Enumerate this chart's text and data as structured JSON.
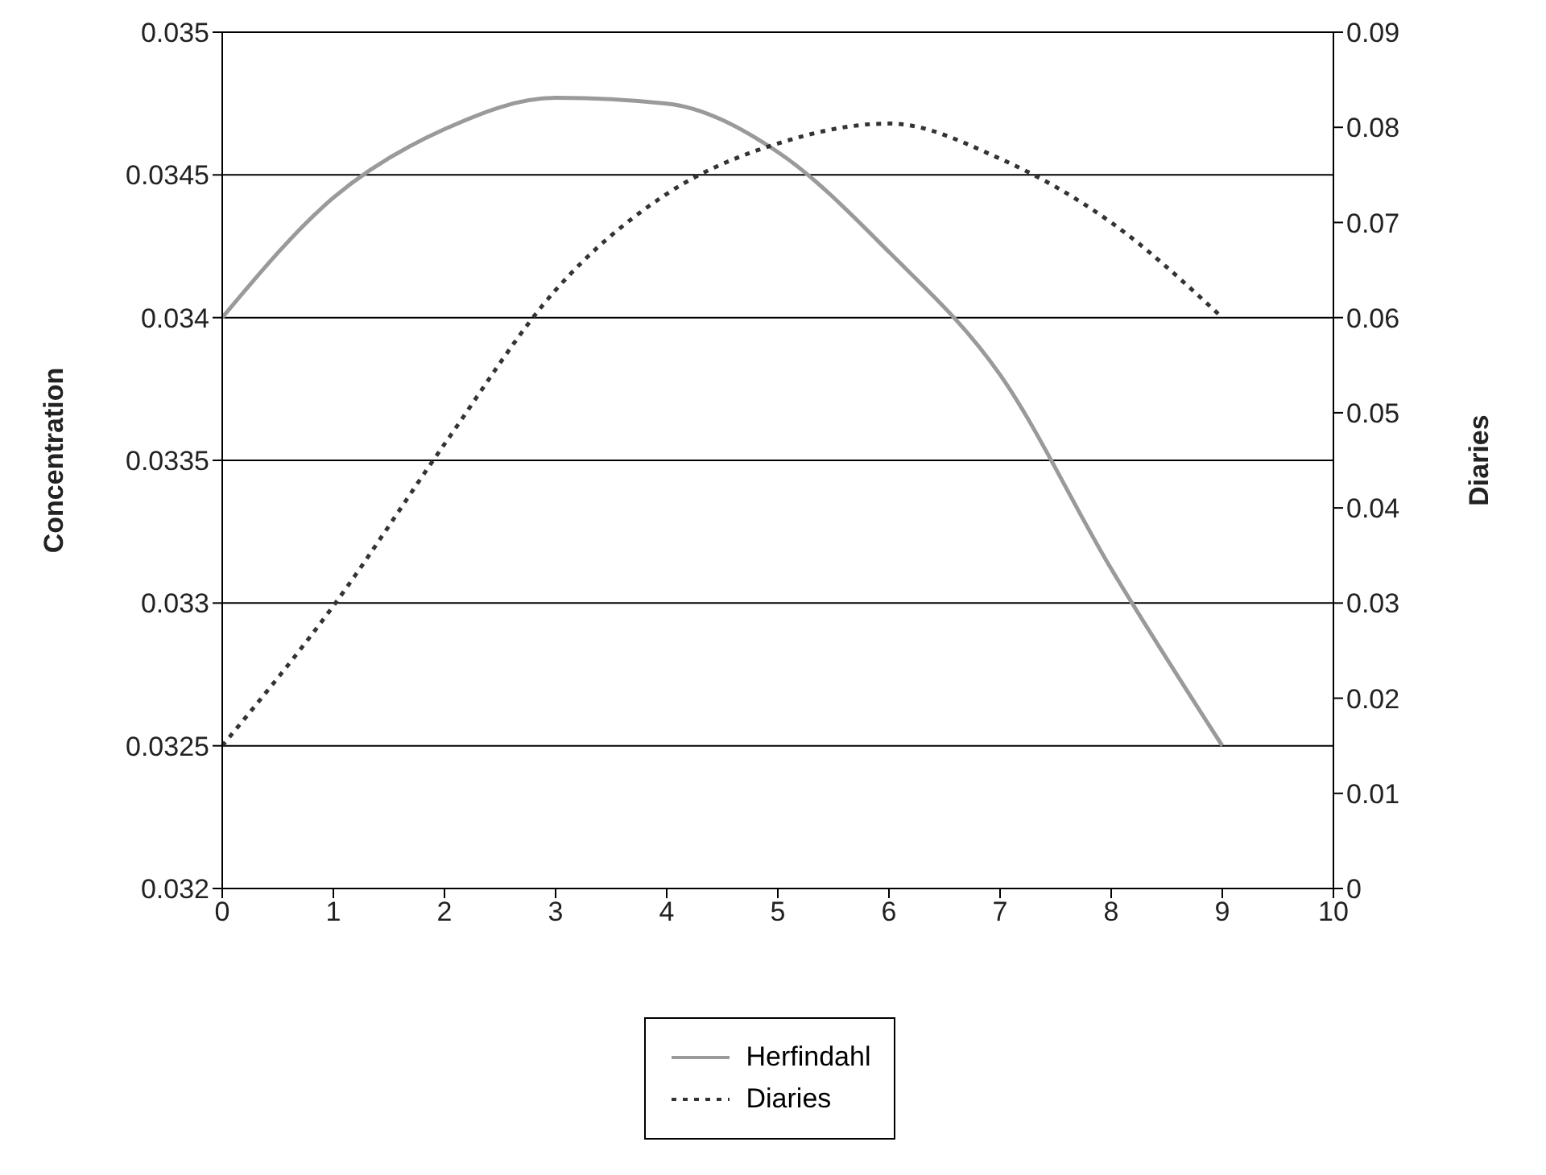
{
  "chart_data": {
    "type": "line",
    "xlabel": null,
    "ylabel": "Concentration",
    "y2label": "Diaries",
    "x": [
      0,
      1,
      2,
      3,
      4,
      5,
      6,
      7,
      8,
      9
    ],
    "series": [
      {
        "name": "Herfindahl",
        "color": "#9a9a9a",
        "line_style": "solid",
        "values": [
          0.034,
          0.03442,
          0.03466,
          0.03477,
          0.03475,
          0.03458,
          0.03423,
          0.0338,
          0.03312,
          0.0325
        ]
      },
      {
        "name": "Diaries",
        "color": "#333333",
        "line_style": "dotted",
        "axis": "y2",
        "values": [
          0.015,
          0.0297,
          0.0467,
          0.0629,
          0.073,
          0.0783,
          0.0804,
          0.0767,
          0.07,
          0.06
        ]
      }
    ],
    "xlim": [
      0,
      10
    ],
    "xticks": [
      0,
      1,
      2,
      3,
      4,
      5,
      6,
      7,
      8,
      9,
      10
    ],
    "ylim": [
      0.032,
      0.035
    ],
    "yticks": [
      0.032,
      0.0325,
      0.033,
      0.0335,
      0.034,
      0.0345,
      0.035
    ],
    "y2lim": [
      0,
      0.09
    ],
    "y2ticks": [
      0,
      0.01,
      0.02,
      0.03,
      0.04,
      0.05,
      0.06,
      0.07,
      0.08,
      0.09
    ],
    "grid": "y",
    "legend": "bottom",
    "marker": "none"
  }
}
